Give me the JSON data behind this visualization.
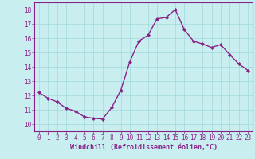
{
  "x": [
    0,
    1,
    2,
    3,
    4,
    5,
    6,
    7,
    8,
    9,
    10,
    11,
    12,
    13,
    14,
    15,
    16,
    17,
    18,
    19,
    20,
    21,
    22,
    23
  ],
  "y": [
    12.2,
    11.8,
    11.55,
    11.1,
    10.9,
    10.5,
    10.4,
    10.35,
    11.15,
    12.35,
    14.35,
    15.8,
    16.2,
    17.35,
    17.45,
    18.0,
    16.6,
    15.8,
    15.6,
    15.35,
    15.55,
    14.85,
    14.2,
    13.75
  ],
  "line_color": "#882288",
  "marker": "D",
  "marker_size": 2.0,
  "bg_color": "#c8eef0",
  "grid_color": "#a0d8dc",
  "xlabel": "Windchill (Refroidissement éolien,°C)",
  "xlabel_fontsize": 6.0,
  "ylim": [
    9.5,
    18.5
  ],
  "xlim": [
    -0.5,
    23.5
  ],
  "yticks": [
    10,
    11,
    12,
    13,
    14,
    15,
    16,
    17,
    18
  ],
  "xticks": [
    0,
    1,
    2,
    3,
    4,
    5,
    6,
    7,
    8,
    9,
    10,
    11,
    12,
    13,
    14,
    15,
    16,
    17,
    18,
    19,
    20,
    21,
    22,
    23
  ],
  "tick_color": "#882288",
  "tick_fontsize": 5.5,
  "spine_color": "#882288",
  "linewidth": 1.0
}
